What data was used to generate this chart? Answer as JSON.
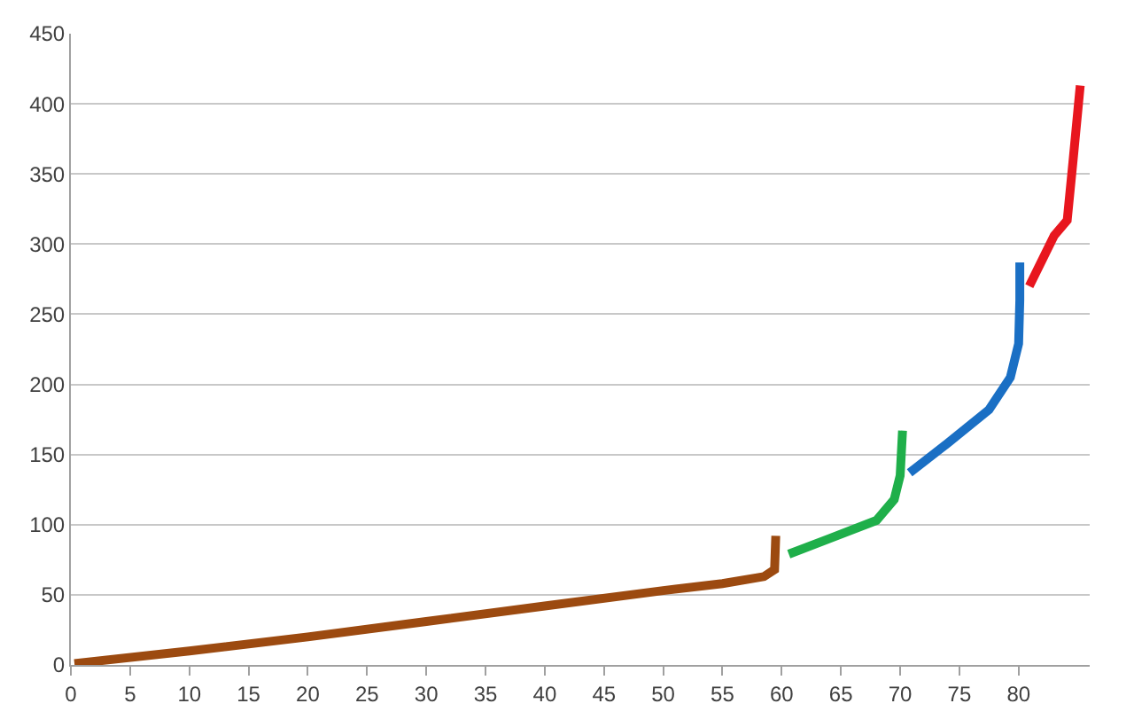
{
  "chart_data": {
    "type": "line",
    "series": [
      {
        "color": "#9c4a10",
        "x": [
          0.3,
          10,
          20,
          30,
          40,
          50,
          55,
          58.5,
          59.4,
          59.5
        ],
        "values": [
          1,
          10,
          20,
          31,
          42,
          53,
          58,
          63,
          68,
          92
        ]
      },
      {
        "color": "#1faf4a",
        "x": [
          60.6,
          64,
          68,
          69.5,
          70,
          70.2
        ],
        "values": [
          79,
          90,
          103,
          118,
          135,
          167
        ]
      },
      {
        "color": "#1a6fc4",
        "x": [
          70.8,
          74,
          77.5,
          79.3,
          80,
          80.1,
          80.1
        ],
        "values": [
          137,
          158,
          182,
          205,
          229,
          260,
          287
        ]
      },
      {
        "color": "#e8161e",
        "x": [
          80.9,
          83,
          84.1,
          84.6,
          85.2
        ],
        "values": [
          270,
          306,
          317,
          360,
          413
        ]
      }
    ],
    "xlim": [
      0,
      86
    ],
    "xticks": [
      0,
      5,
      10,
      15,
      20,
      25,
      30,
      35,
      40,
      45,
      50,
      55,
      60,
      65,
      70,
      75,
      80
    ],
    "ylim": [
      0,
      450
    ],
    "yticks": [
      0,
      50,
      100,
      150,
      200,
      250,
      300,
      350,
      400,
      450
    ],
    "grid": "y",
    "marker": "none",
    "line_style": "solid"
  }
}
